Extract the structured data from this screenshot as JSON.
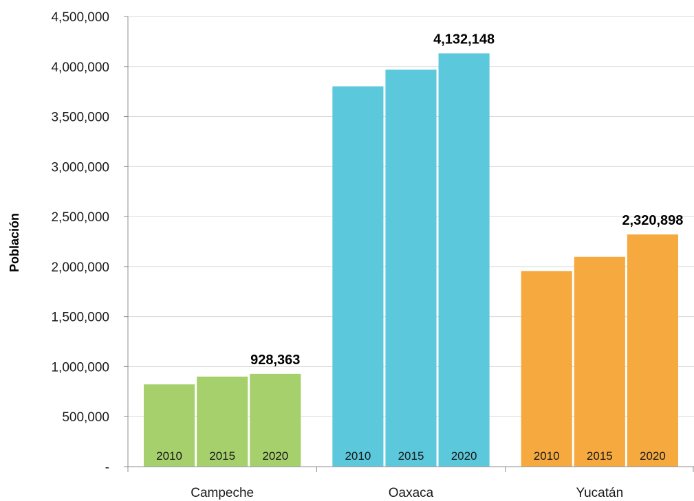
{
  "chart_data": {
    "type": "bar",
    "title": "",
    "xlabel": "",
    "ylabel": "Población",
    "ylim": [
      0,
      4500000
    ],
    "yticks": [
      0,
      500000,
      1000000,
      1500000,
      2000000,
      2500000,
      3000000,
      3500000,
      4000000,
      4500000
    ],
    "ytick_labels": [
      "-",
      "500,000",
      "1,000,000",
      "1,500,000",
      "2,000,000",
      "2,500,000",
      "3,000,000",
      "3,500,000",
      "4,000,000",
      "4,500,000"
    ],
    "grid": true,
    "legend": "none",
    "years": [
      "2010",
      "2015",
      "2020"
    ],
    "groups": [
      {
        "name": "Campeche",
        "color": "#a6d06c",
        "values": [
          822441,
          899931,
          928363
        ],
        "top_label": "928,363"
      },
      {
        "name": "Oaxaca",
        "color": "#5bc8dc",
        "values": [
          3801962,
          3967889,
          4132148
        ],
        "top_label": "4,132,148"
      },
      {
        "name": "Yucatán",
        "color": "#f6a93f",
        "values": [
          1955577,
          2097175,
          2320898
        ],
        "top_label": "2,320,898"
      }
    ]
  }
}
